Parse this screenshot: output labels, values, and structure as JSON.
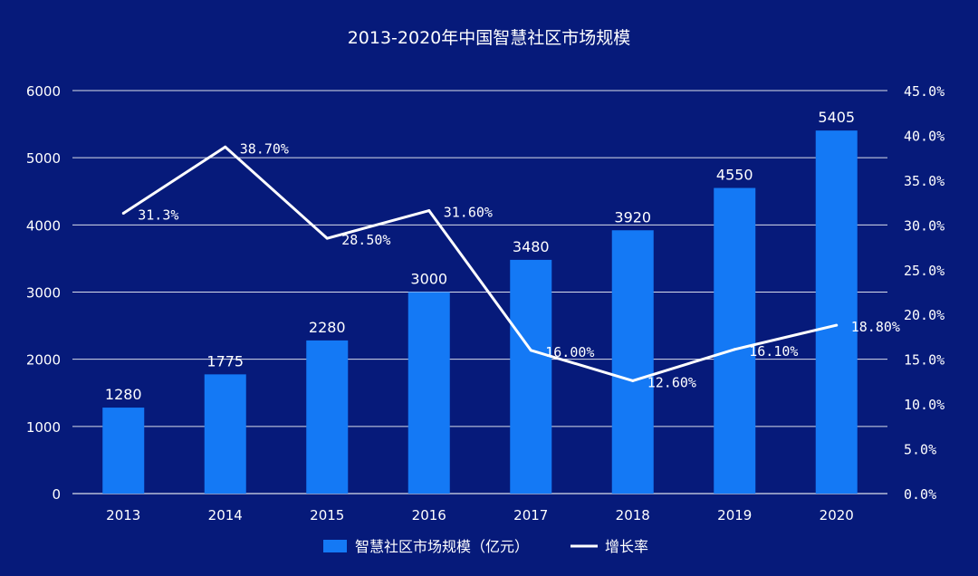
{
  "chart_data": {
    "type": "bar",
    "title": "2013-2020年中国智慧社区市场规模",
    "categories": [
      "2013",
      "2014",
      "2015",
      "2016",
      "2017",
      "2018",
      "2019",
      "2020"
    ],
    "series": [
      {
        "name": "智慧社区市场规模（亿元）",
        "type": "bar",
        "axis": "left",
        "values": [
          1280,
          1775,
          2280,
          3000,
          3480,
          3920,
          4550,
          5405
        ],
        "labels": [
          "1280",
          "1775",
          "2280",
          "3000",
          "3480",
          "3920",
          "4550",
          "5405"
        ]
      },
      {
        "name": "增长率",
        "type": "line",
        "axis": "right",
        "values": [
          31.3,
          38.7,
          28.5,
          31.6,
          16.0,
          12.6,
          16.1,
          18.8
        ],
        "labels": [
          "31.3%",
          "38.70%",
          "28.50%",
          "31.60%",
          "16.00%",
          "12.60%",
          "16.10%",
          "18.80%"
        ]
      }
    ],
    "y_left": {
      "min": 0,
      "max": 6000,
      "ticks": [
        "0",
        "1000",
        "2000",
        "3000",
        "4000",
        "5000",
        "6000"
      ]
    },
    "y_right": {
      "min": 0,
      "max": 45,
      "ticks": [
        "0.0%",
        "5.0%",
        "10.0%",
        "15.0%",
        "20.0%",
        "25.0%",
        "30.0%",
        "35.0%",
        "40.0%",
        "45.0%"
      ]
    },
    "grid": true,
    "legend": "bottom",
    "colors": {
      "background": "#061a7a",
      "bar": "#1479f5",
      "line": "#ffffff",
      "text": "#ffffff",
      "grid": "#ffffff"
    }
  }
}
